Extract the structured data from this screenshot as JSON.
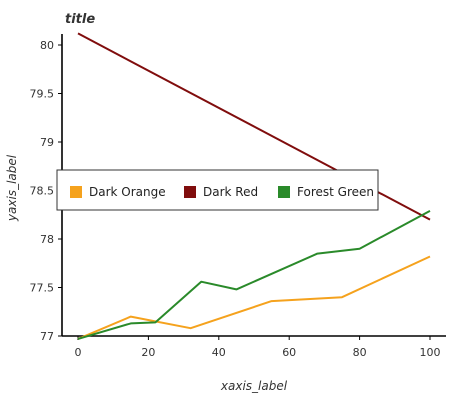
{
  "chart_data": {
    "type": "line",
    "title": "title",
    "xlabel": "xaxis_label",
    "ylabel": "yaxis_label",
    "xlim": [
      0,
      100
    ],
    "ylim": [
      77,
      80
    ],
    "x_ticks": [
      0,
      20,
      40,
      60,
      80,
      100
    ],
    "y_ticks": [
      77,
      77.5,
      78,
      78.5,
      79,
      79.5,
      80
    ],
    "grid": false,
    "legend_position": "center-right",
    "series": [
      {
        "name": "Dark Orange",
        "color": "#f5a21d",
        "x": [
          0,
          15,
          32,
          55,
          75,
          100
        ],
        "y": [
          76.97,
          77.2,
          77.08,
          77.36,
          77.4,
          77.82
        ]
      },
      {
        "name": "Dark Red",
        "color": "#800d0d",
        "x": [
          0,
          100
        ],
        "y": [
          80.12,
          78.2
        ]
      },
      {
        "name": "Forest Green",
        "color": "#2a8a2a",
        "x": [
          0,
          15,
          22,
          35,
          45,
          68,
          80,
          100
        ],
        "y": [
          76.97,
          77.13,
          77.14,
          77.56,
          77.48,
          77.85,
          77.9,
          78.29
        ]
      }
    ]
  }
}
